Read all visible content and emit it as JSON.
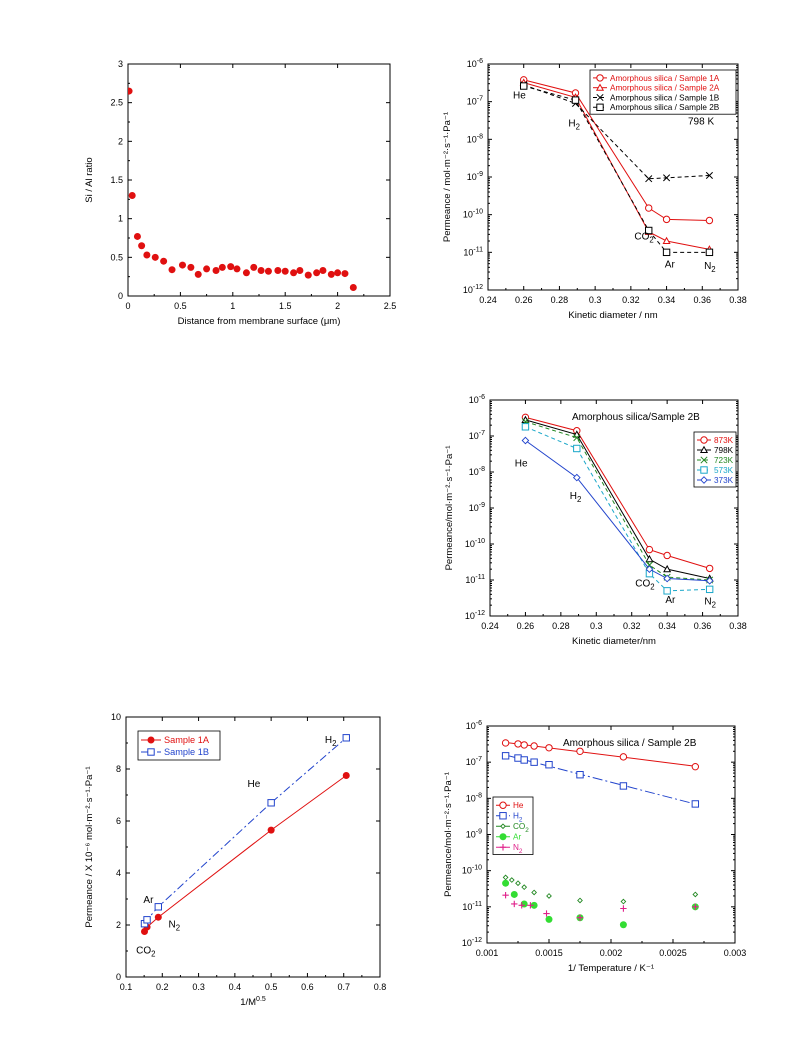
{
  "chart_data": [
    {
      "id": "si-al",
      "type": "scatter",
      "xlabel": "Distance from membrane surface (μm)",
      "ylabel": "Si / Al ratio",
      "xlim": [
        0,
        2.5
      ],
      "ylim": [
        0,
        3
      ],
      "xticks": [
        0,
        0.5,
        1,
        1.5,
        2,
        2.5
      ],
      "yticks": [
        0,
        0.5,
        1,
        1.5,
        2,
        2.5,
        3
      ],
      "xticklabels": [
        "0",
        "0.5",
        "1",
        "1.5",
        "2",
        "2.5"
      ],
      "yticklabels": [
        "0",
        "0.5",
        "1",
        "1.5",
        "2",
        "2.5",
        "3"
      ],
      "series": [
        {
          "color": "#e01010",
          "marker": "dot",
          "line": "none",
          "x": [
            0.01,
            0.04,
            0.09,
            0.13,
            0.18,
            0.26,
            0.34,
            0.42,
            0.52,
            0.6,
            0.67,
            0.75,
            0.84,
            0.9,
            0.98,
            1.04,
            1.13,
            1.2,
            1.27,
            1.34,
            1.43,
            1.5,
            1.58,
            1.64,
            1.72,
            1.8,
            1.86,
            1.94,
            2.0,
            2.07,
            2.15
          ],
          "y": [
            2.65,
            1.3,
            0.77,
            0.65,
            0.53,
            0.5,
            0.45,
            0.34,
            0.4,
            0.37,
            0.28,
            0.35,
            0.33,
            0.37,
            0.38,
            0.35,
            0.3,
            0.37,
            0.33,
            0.32,
            0.33,
            0.32,
            0.3,
            0.33,
            0.27,
            0.3,
            0.33,
            0.28,
            0.3,
            0.29,
            0.11
          ]
        }
      ]
    },
    {
      "id": "perm-kd-samples",
      "type": "line",
      "log_y": true,
      "xlabel": "Kinetic diameter / nm",
      "ylabel": "Permeance / mol·m⁻²·s⁻¹·Pa⁻¹",
      "xlim": [
        0.24,
        0.38
      ],
      "ylim": [
        1e-12,
        1e-06
      ],
      "xticks": [
        0.24,
        0.26,
        0.28,
        0.3,
        0.32,
        0.34,
        0.36,
        0.38
      ],
      "xticklabels": [
        "0.24",
        "0.26",
        "0.28",
        "0.3",
        "0.32",
        "0.34",
        "0.36",
        "0.38"
      ],
      "yticks": [
        1e-12,
        1e-11,
        1e-10,
        1e-09,
        1e-08,
        1e-07,
        1e-06
      ],
      "yticklabels": [
        [
          "10",
          "-12"
        ],
        [
          "10",
          "-11"
        ],
        [
          "10",
          "-10"
        ],
        [
          "10",
          "-9"
        ],
        [
          "10",
          "-8"
        ],
        [
          "10",
          "-7"
        ],
        [
          "10",
          "-6"
        ]
      ],
      "legend_position": "top-right",
      "series": [
        {
          "name": "Amorphous silica / Sample 1A",
          "color": "#e01010",
          "dash": "",
          "marker": "circle",
          "x": [
            0.26,
            0.289,
            0.33,
            0.34,
            0.364
          ],
          "y": [
            3.8e-07,
            1.7e-07,
            1.5e-10,
            7.5e-11,
            7e-11
          ]
        },
        {
          "name": "Amorphous silica / Sample 2A",
          "color": "#e01010",
          "dash": "",
          "marker": "triangle",
          "x": [
            0.26,
            0.289,
            0.33,
            0.34,
            0.364
          ],
          "y": [
            3.2e-07,
            1.3e-07,
            3.5e-11,
            2e-11,
            1.2e-11
          ]
        },
        {
          "name": "Amorphous silica / Sample 1B",
          "color": "#000000",
          "dash": "4,3",
          "marker": "x",
          "x": [
            0.26,
            0.289,
            0.33,
            0.34,
            0.364
          ],
          "y": [
            2.8e-07,
            9e-08,
            9e-10,
            9.5e-10,
            1.1e-09
          ]
        },
        {
          "name": "Amorphous silica / Sample 2B",
          "color": "#000000",
          "dash": "4,3",
          "marker": "square",
          "x": [
            0.26,
            0.289,
            0.33,
            0.34,
            0.364
          ],
          "y": [
            2.6e-07,
            1.1e-07,
            3.8e-11,
            1e-11,
            1e-11
          ]
        }
      ],
      "annotations": [
        {
          "text": "He",
          "x": 0.254,
          "y": 1.2e-07
        },
        {
          "text": "H",
          "sub": "2",
          "x": 0.285,
          "y": 2.2e-08
        },
        {
          "text": "798 K",
          "x": 0.352,
          "y": 2.5e-08
        },
        {
          "text": "CO",
          "sub": "2",
          "x": 0.322,
          "y": 2.2e-11
        },
        {
          "text": "Ar",
          "x": 0.339,
          "y": 4e-12
        },
        {
          "text": "N",
          "sub": "2",
          "x": 0.361,
          "y": 3.6e-12
        }
      ]
    },
    {
      "id": "perm-kd-temps",
      "type": "line",
      "log_y": true,
      "title": "Amorphous silica/Sample 2B",
      "xlabel": "Kinetic diameter/nm",
      "ylabel": "Permeance/mol·m⁻²·s⁻¹·Pa⁻¹",
      "xlim": [
        0.24,
        0.38
      ],
      "ylim": [
        1e-12,
        1e-06
      ],
      "xticks": [
        0.24,
        0.26,
        0.28,
        0.3,
        0.32,
        0.34,
        0.36,
        0.38
      ],
      "xticklabels": [
        "0.24",
        "0.26",
        "0.28",
        "0.3",
        "0.32",
        "0.34",
        "0.36",
        "0.38"
      ],
      "yticks": [
        1e-12,
        1e-11,
        1e-10,
        1e-09,
        1e-08,
        1e-07,
        1e-06
      ],
      "yticklabels": [
        [
          "10",
          "-12"
        ],
        [
          "10",
          "-11"
        ],
        [
          "10",
          "-10"
        ],
        [
          "10",
          "-9"
        ],
        [
          "10",
          "-8"
        ],
        [
          "10",
          "-7"
        ],
        [
          "10",
          "-6"
        ]
      ],
      "legend_position": "upper-right",
      "series": [
        {
          "name": "873K",
          "color": "#e01010",
          "dash": "",
          "marker": "circle",
          "x": [
            0.26,
            0.289,
            0.33,
            0.34,
            0.364
          ],
          "y": [
            3.3e-07,
            1.4e-07,
            7e-11,
            4.8e-11,
            2.1e-11
          ]
        },
        {
          "name": "798K",
          "color": "#000000",
          "dash": "",
          "marker": "triangle",
          "x": [
            0.26,
            0.289,
            0.33,
            0.34,
            0.364
          ],
          "y": [
            2.8e-07,
            1.1e-07,
            3.8e-11,
            2e-11,
            1.1e-11
          ]
        },
        {
          "name": "723K",
          "color": "#228822",
          "dash": "4,3",
          "marker": "x",
          "x": [
            0.26,
            0.289,
            0.33,
            0.34,
            0.364
          ],
          "y": [
            2.5e-07,
            9e-08,
            2.6e-11,
            1.2e-11,
            1e-11
          ]
        },
        {
          "name": "573K",
          "color": "#1aa7c9",
          "dash": "4,3",
          "marker": "square",
          "x": [
            0.26,
            0.289,
            0.33,
            0.34,
            0.364
          ],
          "y": [
            1.8e-07,
            4.5e-08,
            1.5e-11,
            5e-12,
            5.5e-12
          ]
        },
        {
          "name": "373K",
          "color": "#2244cc",
          "dash": "",
          "marker": "diamond",
          "x": [
            0.26,
            0.289,
            0.33,
            0.34,
            0.364
          ],
          "y": [
            7.5e-08,
            7e-09,
            2e-11,
            1.1e-11,
            9.5e-12
          ]
        }
      ],
      "annotations": [
        {
          "text": "He",
          "x": 0.254,
          "y": 1.4e-08
        },
        {
          "text": "H",
          "sub": "2",
          "x": 0.285,
          "y": 1.8e-09
        },
        {
          "text": "CO",
          "sub": "2",
          "x": 0.322,
          "y": 6.5e-12
        },
        {
          "text": "Ar",
          "x": 0.339,
          "y": 2.3e-12
        },
        {
          "text": "N",
          "sub": "2",
          "x": 0.361,
          "y": 2.1e-12
        }
      ]
    },
    {
      "id": "perm-mass",
      "type": "line",
      "xlabel": "1/M",
      "xlabel_sup": "0.5",
      "ylabel": "Permeance / X 10⁻⁶ mol·m⁻²·s⁻¹·Pa⁻¹",
      "xlim": [
        0.1,
        0.8
      ],
      "ylim": [
        0,
        10
      ],
      "xticks": [
        0.1,
        0.2,
        0.3,
        0.4,
        0.5,
        0.6,
        0.7,
        0.8
      ],
      "xticklabels": [
        "0.1",
        "0.2",
        "0.3",
        "0.4",
        "0.5",
        "0.6",
        "0.7",
        "0.8"
      ],
      "yticks": [
        0,
        2,
        4,
        6,
        8,
        10
      ],
      "yticklabels": [
        "0",
        "2",
        "4",
        "6",
        "8",
        "10"
      ],
      "legend_position": "top-left",
      "series": [
        {
          "name": "Sample 1A",
          "color": "#e01010",
          "dash": "",
          "marker": "dot",
          "x": [
            0.151,
            0.158,
            0.189,
            0.5,
            0.707
          ],
          "y": [
            1.75,
            1.92,
            2.3,
            5.65,
            7.75
          ]
        },
        {
          "name": "Sample 1B",
          "color": "#2244cc",
          "dash": "8,3,2,3",
          "marker": "square",
          "x": [
            0.151,
            0.158,
            0.189,
            0.5,
            0.707
          ],
          "y": [
            2.05,
            2.2,
            2.7,
            6.7,
            9.2
          ]
        }
      ],
      "annotations": [
        {
          "text": "H",
          "sub": "2",
          "x": 0.648,
          "y": 9.0
        },
        {
          "text": "He",
          "x": 0.435,
          "y": 7.3
        },
        {
          "text": "Ar",
          "x": 0.148,
          "y": 2.85
        },
        {
          "text": "N",
          "sub": "2",
          "x": 0.217,
          "y": 1.9
        },
        {
          "text": "CO",
          "sub": "2",
          "x": 0.128,
          "y": 0.9
        }
      ]
    },
    {
      "id": "perm-temp",
      "type": "scatter",
      "log_y": true,
      "title": "Amorphous silica / Sample 2B",
      "xlabel": "1/ Temperature / K⁻¹",
      "ylabel": "Permeance/mol·m⁻²·s⁻¹·Pa⁻¹",
      "xlim": [
        0.001,
        0.003
      ],
      "ylim": [
        1e-12,
        1e-06
      ],
      "xticks": [
        0.001,
        0.0015,
        0.002,
        0.0025,
        0.003
      ],
      "xticklabels": [
        "0.001",
        "0.0015",
        "0.002",
        "0.0025",
        "0.003"
      ],
      "yticks": [
        1e-12,
        1e-11,
        1e-10,
        1e-09,
        1e-08,
        1e-07,
        1e-06
      ],
      "yticklabels": [
        [
          "10",
          "-12"
        ],
        [
          "10",
          "-11"
        ],
        [
          "10",
          "-10"
        ],
        [
          "10",
          "-9"
        ],
        [
          "10",
          "-8"
        ],
        [
          "10",
          "-7"
        ],
        [
          "10",
          "-6"
        ]
      ],
      "legend_position": "left",
      "series": [
        {
          "name": "He",
          "color": "#e01010",
          "dash": "",
          "marker": "circle",
          "fit": true,
          "x": [
            0.00115,
            0.00125,
            0.0013,
            0.00138,
            0.0015,
            0.00175,
            0.0021,
            0.00268
          ],
          "y": [
            3.4e-07,
            3.2e-07,
            3e-07,
            2.8e-07,
            2.5e-07,
            2e-07,
            1.4e-07,
            7.5e-08
          ]
        },
        {
          "name": "H",
          "name_sub": "2",
          "color": "#2244cc",
          "dash": "10,3,2,3",
          "marker": "square",
          "fit": true,
          "x": [
            0.00115,
            0.00125,
            0.0013,
            0.00138,
            0.0015,
            0.00175,
            0.0021,
            0.00268
          ],
          "y": [
            1.5e-07,
            1.3e-07,
            1.15e-07,
            1e-07,
            8.5e-08,
            4.5e-08,
            2.2e-08,
            7e-09
          ]
        },
        {
          "name": "CO",
          "name_sub": "2",
          "color": "#228822",
          "dash": "",
          "marker": "smalldiamond",
          "fit": false,
          "x": [
            0.00115,
            0.0012,
            0.00125,
            0.0013,
            0.00138,
            0.0015,
            0.00175,
            0.0021,
            0.00268
          ],
          "y": [
            6.5e-11,
            5.5e-11,
            4.5e-11,
            3.5e-11,
            2.5e-11,
            2e-11,
            1.5e-11,
            1.4e-11,
            2.2e-11
          ]
        },
        {
          "name": "Ar",
          "color": "#33dd33",
          "dash": "",
          "marker": "dot",
          "fit": false,
          "x": [
            0.00115,
            0.00122,
            0.0013,
            0.00138,
            0.0015,
            0.00175,
            0.0021,
            0.00268
          ],
          "y": [
            4.5e-11,
            2.2e-11,
            1.2e-11,
            1.1e-11,
            4.5e-12,
            5e-12,
            3.2e-12,
            1e-11
          ]
        },
        {
          "name": "N",
          "name_sub": "2",
          "color": "#e0208a",
          "dash": "",
          "marker": "plus",
          "fit": false,
          "x": [
            0.00115,
            0.00122,
            0.00128,
            0.00135,
            0.00148,
            0.00175,
            0.0021,
            0.00268
          ],
          "y": [
            2.1e-11,
            1.2e-11,
            1.1e-11,
            1.1e-11,
            6.5e-12,
            5e-12,
            9e-12,
            1e-11
          ]
        }
      ]
    }
  ]
}
